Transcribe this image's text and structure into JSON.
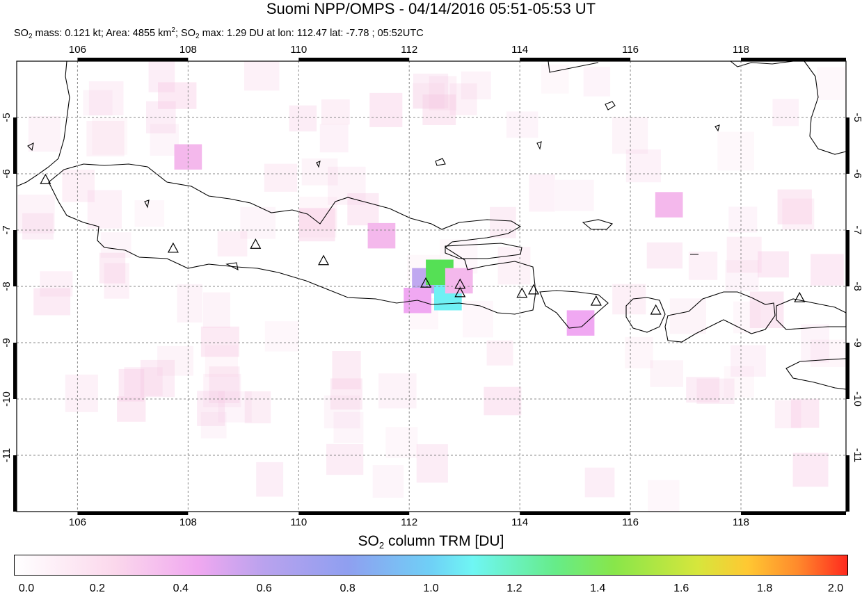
{
  "header": {
    "title": "Suomi NPP/OMPS - 04/14/2016 05:51-05:53 UT",
    "subtitle": {
      "mass_label": "SO",
      "mass_text": " mass: 0.121 kt; Area: 4855 km",
      "area_sup": "2",
      "max_label": "; SO",
      "max_text": " max: 1.29 DU at lon: 112.47 lat: -7.78 ; 05:52UTC",
      "sub2": "2"
    }
  },
  "map": {
    "lon_range": [
      104.9,
      119.9
    ],
    "lat_range": [
      -12.0,
      -4.0
    ],
    "lon_ticks": [
      "106",
      "108",
      "110",
      "112",
      "114",
      "116",
      "118"
    ],
    "lat_ticks": [
      "-5",
      "-6",
      "-7",
      "-8",
      "-9",
      "-10",
      "-11"
    ],
    "volcano_icon": "triangle-icon",
    "volcanoes": [
      {
        "lon": 105.42,
        "lat": -6.1
      },
      {
        "lon": 107.73,
        "lat": -7.32
      },
      {
        "lon": 109.22,
        "lat": -7.25
      },
      {
        "lon": 110.45,
        "lat": -7.54
      },
      {
        "lon": 112.3,
        "lat": -7.94
      },
      {
        "lon": 112.92,
        "lat": -7.96
      },
      {
        "lon": 112.92,
        "lat": -8.11
      },
      {
        "lon": 114.04,
        "lat": -8.12
      },
      {
        "lon": 114.25,
        "lat": -8.06
      },
      {
        "lon": 115.38,
        "lat": -8.26
      },
      {
        "lon": 116.46,
        "lat": -8.42
      },
      {
        "lon": 119.06,
        "lat": -8.2
      }
    ],
    "so2_pixels": [
      {
        "lon": 112.3,
        "lat": -7.9,
        "du": 0.62
      },
      {
        "lon": 112.55,
        "lat": -7.75,
        "du": 1.29
      },
      {
        "lon": 112.7,
        "lat": -8.2,
        "du": 1.05
      },
      {
        "lon": 112.15,
        "lat": -8.25,
        "du": 0.45
      },
      {
        "lon": 112.9,
        "lat": -7.9,
        "du": 0.35
      },
      {
        "lon": 111.5,
        "lat": -7.1,
        "du": 0.35
      },
      {
        "lon": 115.1,
        "lat": -8.65,
        "du": 0.4
      },
      {
        "lon": 116.7,
        "lat": -6.55,
        "du": 0.3
      },
      {
        "lon": 108.0,
        "lat": -5.7,
        "du": 0.3
      }
    ]
  },
  "colorbar": {
    "title_main": "SO",
    "title_sub": "2",
    "title_rest": " column TRM [DU]",
    "ticks": [
      "0.0",
      "0.2",
      "0.4",
      "0.6",
      "0.8",
      "1.0",
      "1.2",
      "1.4",
      "1.6",
      "1.8",
      "2.0"
    ],
    "range": [
      0.0,
      2.0
    ]
  }
}
